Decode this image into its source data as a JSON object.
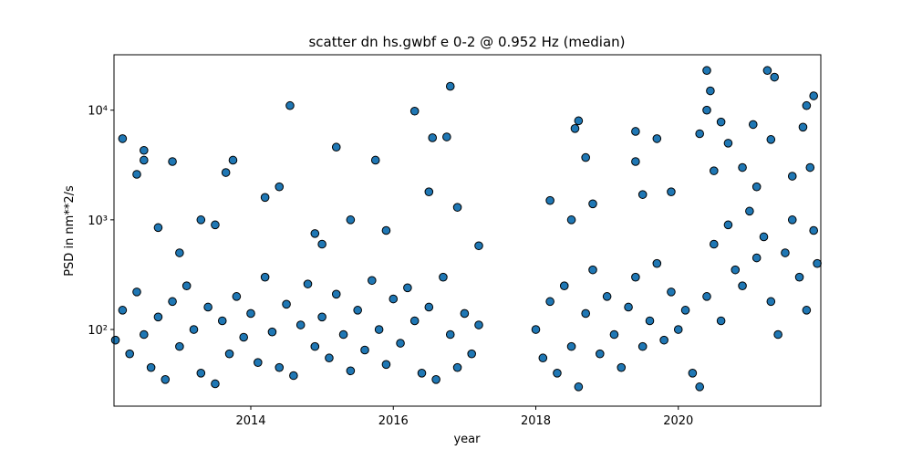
{
  "chart_data": {
    "type": "scatter",
    "title": "scatter dn hs.gwbf e 0-2 @ 0.952 Hz (median)",
    "xlabel": "year",
    "ylabel": "PSD in nm**2/s",
    "xlim": [
      2012.08,
      2022.0
    ],
    "xticks": [
      2014,
      2016,
      2018,
      2020
    ],
    "ylim": [
      20,
      32000
    ],
    "yscale": "log",
    "yticks": [
      {
        "value": 100,
        "label": "10²"
      },
      {
        "value": 1000,
        "label": "10³"
      },
      {
        "value": 10000,
        "label": "10⁴"
      }
    ],
    "series": [
      {
        "color": "#1f77b4",
        "edgecolor": "#000000",
        "x": [
          2012.1,
          2012.2,
          2012.3,
          2012.4,
          2012.5,
          2012.6,
          2012.7,
          2012.8,
          2012.9,
          2013.0,
          2013.1,
          2013.2,
          2013.3,
          2013.4,
          2013.5,
          2013.6,
          2013.7,
          2013.8,
          2013.9,
          2014.0,
          2014.1,
          2014.2,
          2014.3,
          2014.4,
          2014.5,
          2014.6,
          2014.7,
          2014.8,
          2014.9,
          2015.0,
          2015.1,
          2015.2,
          2015.3,
          2015.4,
          2015.5,
          2015.6,
          2015.7,
          2015.8,
          2015.9,
          2016.0,
          2016.1,
          2016.2,
          2016.3,
          2016.4,
          2016.5,
          2016.6,
          2016.7,
          2016.8,
          2016.9,
          2017.0,
          2017.1,
          2017.2,
          2012.7,
          2013.3,
          2013.5,
          2014.2,
          2014.4,
          2014.9,
          2015.4,
          2015.9,
          2016.5,
          2016.9,
          2017.2,
          2013.0,
          2015.0,
          2018.0,
          2018.1,
          2018.2,
          2018.3,
          2018.4,
          2018.5,
          2018.6,
          2018.7,
          2018.8,
          2018.9,
          2019.0,
          2019.1,
          2019.2,
          2019.3,
          2019.4,
          2019.5,
          2019.6,
          2019.7,
          2019.8,
          2019.9,
          2020.0,
          2020.1,
          2020.2,
          2020.3,
          2018.2,
          2018.8,
          2019.5,
          2019.9,
          2018.5,
          2020.4,
          2020.5,
          2020.6,
          2020.7,
          2020.8,
          2020.9,
          2021.0,
          2021.1,
          2021.2,
          2021.3,
          2021.4,
          2021.5,
          2021.6,
          2021.7,
          2021.8,
          2021.9,
          2021.95,
          2020.5,
          2020.9,
          2021.1,
          2021.6,
          2021.85,
          2012.2,
          2012.5,
          2012.5,
          2012.4,
          2012.9,
          2013.65,
          2013.75,
          2014.55,
          2015.2,
          2015.75,
          2016.3,
          2016.8,
          2016.75,
          2016.55,
          2018.55,
          2018.6,
          2018.7,
          2019.4,
          2019.4,
          2019.7,
          2020.4,
          2020.45,
          2020.4,
          2020.6,
          2021.25,
          2021.35,
          2021.3,
          2021.05,
          2021.9,
          2021.8,
          2021.75,
          2020.7,
          2020.3
        ],
        "values": [
          80,
          150,
          60,
          220,
          90,
          45,
          130,
          35,
          180,
          70,
          250,
          100,
          40,
          160,
          32,
          120,
          60,
          200,
          85,
          140,
          50,
          300,
          95,
          45,
          170,
          38,
          110,
          260,
          70,
          130,
          55,
          210,
          90,
          42,
          150,
          65,
          280,
          100,
          48,
          190,
          75,
          240,
          120,
          40,
          160,
          35,
          300,
          90,
          45,
          140,
          60,
          110,
          850,
          1000,
          900,
          1600,
          2000,
          750,
          1000,
          800,
          1800,
          1300,
          580,
          500,
          600,
          100,
          55,
          180,
          40,
          250,
          70,
          30,
          140,
          350,
          60,
          200,
          90,
          45,
          160,
          300,
          70,
          120,
          400,
          80,
          220,
          100,
          150,
          40,
          30,
          1500,
          1400,
          1700,
          1800,
          1000,
          200,
          600,
          120,
          900,
          350,
          250,
          1200,
          450,
          700,
          180,
          90,
          500,
          1000,
          300,
          150,
          800,
          400,
          2800,
          3000,
          2000,
          2500,
          3000,
          5500,
          4300,
          3500,
          2600,
          3400,
          2700,
          3500,
          11000,
          4600,
          3500,
          9800,
          16500,
          5700,
          5600,
          6800,
          8000,
          3700,
          6400,
          3400,
          5500,
          23000,
          15000,
          10000,
          7800,
          23000,
          20000,
          5400,
          7400,
          13500,
          11000,
          7000,
          5000,
          6100
        ]
      }
    ]
  }
}
